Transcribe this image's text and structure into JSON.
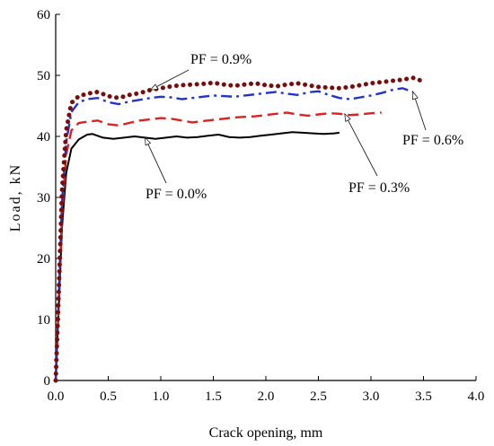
{
  "chart_data": {
    "type": "line",
    "xlabel": "Crack opening, mm",
    "ylabel": "Load, kN",
    "xlim": [
      0.0,
      4.0
    ],
    "ylim": [
      0,
      60
    ],
    "xticks": [
      "0.0",
      "0.5",
      "1.0",
      "1.5",
      "2.0",
      "2.5",
      "3.0",
      "3.5",
      "4.0"
    ],
    "yticks": [
      "0",
      "10",
      "20",
      "30",
      "40",
      "50",
      "60"
    ],
    "grid": false,
    "series": [
      {
        "name": "PF = 0.0%",
        "color": "#000000",
        "style": "solid",
        "x": [
          0.0,
          0.03,
          0.06,
          0.1,
          0.15,
          0.22,
          0.3,
          0.35,
          0.45,
          0.55,
          0.65,
          0.75,
          0.85,
          0.95,
          1.05,
          1.15,
          1.25,
          1.35,
          1.45,
          1.55,
          1.65,
          1.75,
          1.85,
          1.95,
          2.05,
          2.15,
          2.25,
          2.35,
          2.45,
          2.55,
          2.65,
          2.7
        ],
        "y": [
          0,
          12,
          25,
          34,
          38,
          39.5,
          40.3,
          40.4,
          39.8,
          39.6,
          39.8,
          40.0,
          39.8,
          39.6,
          39.8,
          40.0,
          39.8,
          39.9,
          40.1,
          40.3,
          39.9,
          39.8,
          39.9,
          40.1,
          40.3,
          40.5,
          40.7,
          40.6,
          40.5,
          40.4,
          40.5,
          40.6
        ]
      },
      {
        "name": "PF = 0.3%",
        "color": "#e02020",
        "style": "dashed",
        "x": [
          0.0,
          0.03,
          0.06,
          0.1,
          0.15,
          0.22,
          0.3,
          0.4,
          0.5,
          0.6,
          0.7,
          0.8,
          0.9,
          1.0,
          1.1,
          1.2,
          1.3,
          1.4,
          1.5,
          1.6,
          1.7,
          1.8,
          1.9,
          2.0,
          2.1,
          2.2,
          2.3,
          2.4,
          2.5,
          2.6,
          2.7,
          2.8,
          2.9,
          3.0,
          3.1
        ],
        "y": [
          0,
          13,
          27,
          37,
          41,
          42.2,
          42.4,
          42.6,
          42.0,
          41.8,
          42.2,
          42.6,
          42.8,
          43.0,
          42.9,
          42.6,
          42.3,
          42.5,
          42.7,
          42.9,
          43.1,
          43.2,
          43.3,
          43.5,
          43.7,
          43.9,
          43.6,
          43.4,
          43.6,
          43.8,
          43.7,
          43.5,
          43.6,
          43.8,
          43.9
        ]
      },
      {
        "name": "PF = 0.6%",
        "color": "#2233cc",
        "style": "dash-dot",
        "x": [
          0.0,
          0.03,
          0.06,
          0.1,
          0.15,
          0.22,
          0.3,
          0.4,
          0.5,
          0.6,
          0.7,
          0.8,
          0.9,
          1.0,
          1.1,
          1.2,
          1.3,
          1.4,
          1.5,
          1.6,
          1.7,
          1.8,
          1.9,
          2.0,
          2.1,
          2.2,
          2.3,
          2.4,
          2.5,
          2.6,
          2.7,
          2.8,
          2.9,
          3.0,
          3.1,
          3.2,
          3.3,
          3.4
        ],
        "y": [
          0,
          14,
          29,
          39,
          44,
          45.6,
          46.1,
          46.3,
          45.6,
          45.3,
          45.7,
          46.0,
          46.3,
          46.5,
          46.4,
          46.1,
          46.3,
          46.5,
          46.7,
          46.6,
          46.5,
          46.7,
          46.9,
          47.1,
          47.3,
          47.0,
          46.8,
          47.2,
          47.4,
          46.8,
          46.3,
          46.1,
          46.4,
          46.7,
          47.1,
          47.6,
          47.9,
          47.3
        ]
      },
      {
        "name": "PF = 0.9%",
        "color": "#7a0c0c",
        "style": "dotted",
        "x": [
          0.0,
          0.03,
          0.06,
          0.1,
          0.15,
          0.22,
          0.3,
          0.4,
          0.5,
          0.6,
          0.7,
          0.8,
          0.9,
          1.0,
          1.1,
          1.2,
          1.3,
          1.4,
          1.5,
          1.6,
          1.7,
          1.8,
          1.9,
          2.0,
          2.1,
          2.2,
          2.3,
          2.4,
          2.5,
          2.6,
          2.7,
          2.8,
          2.9,
          3.0,
          3.1,
          3.2,
          3.3,
          3.4,
          3.5
        ],
        "y": [
          0,
          15,
          31,
          41,
          45.5,
          46.6,
          47.0,
          47.3,
          46.6,
          46.3,
          46.8,
          47.1,
          47.6,
          47.9,
          48.2,
          48.4,
          48.5,
          48.6,
          48.8,
          48.5,
          48.3,
          48.5,
          48.7,
          48.4,
          48.2,
          48.5,
          48.7,
          48.4,
          48.1,
          48.0,
          47.9,
          48.1,
          48.4,
          48.7,
          48.9,
          49.1,
          49.3,
          49.6,
          49.0
        ]
      }
    ],
    "annotations": [
      {
        "text": "PF = 0.9%",
        "series": "PF = 0.9%",
        "at_x": 0.9
      },
      {
        "text": "PF = 0.6%",
        "series": "PF = 0.6%",
        "at_x": 3.4
      },
      {
        "text": "PF = 0.3%",
        "series": "PF = 0.3%",
        "at_x": 2.75
      },
      {
        "text": "PF = 0.0%",
        "series": "PF = 0.0%",
        "at_x": 0.85
      }
    ]
  }
}
